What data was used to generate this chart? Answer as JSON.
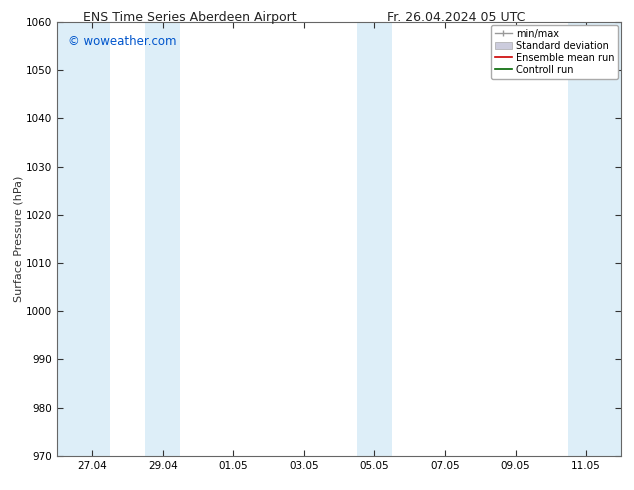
{
  "title_left": "ENS Time Series Aberdeen Airport",
  "title_right": "Fr. 26.04.2024 05 UTC",
  "ylabel": "Surface Pressure (hPa)",
  "ylim": [
    970,
    1060
  ],
  "yticks": [
    970,
    980,
    990,
    1000,
    1010,
    1020,
    1030,
    1040,
    1050,
    1060
  ],
  "xtick_labels": [
    "27.04",
    "29.04",
    "01.05",
    "03.05",
    "05.05",
    "07.05",
    "09.05",
    "11.05"
  ],
  "xtick_positions": [
    1,
    3,
    5,
    7,
    9,
    11,
    13,
    15
  ],
  "shaded_bands": [
    {
      "x_start": 0,
      "x_end": 1.5,
      "color": "#ddeef8"
    },
    {
      "x_start": 2.5,
      "x_end": 3.5,
      "color": "#ddeef8"
    },
    {
      "x_start": 8.5,
      "x_end": 9.5,
      "color": "#ddeef8"
    },
    {
      "x_start": 14.5,
      "x_end": 16,
      "color": "#ddeef8"
    }
  ],
  "watermark_text": "© woweather.com",
  "watermark_color": "#0055cc",
  "bg_color": "#ffffff",
  "plot_bg_color": "#ffffff",
  "spine_color": "#666666",
  "tick_color": "#333333",
  "x_min": 0,
  "x_max": 16
}
